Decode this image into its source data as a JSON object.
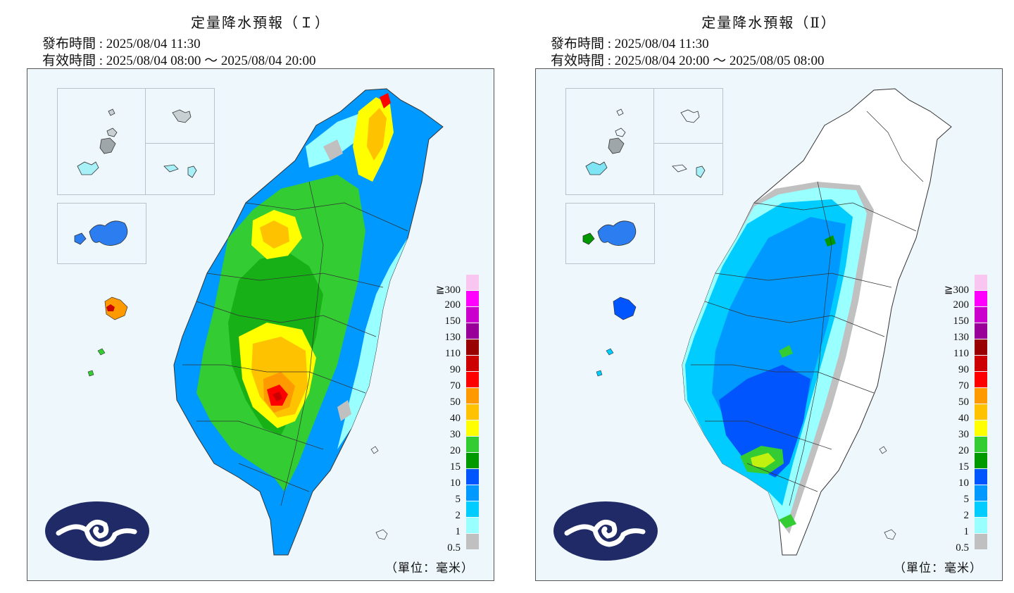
{
  "panels": [
    {
      "title": "定量降水預報（Ｉ）",
      "issue_label": "發布時間 : 2025/08/04 11:30",
      "valid_label": "有效時間 : 2025/08/04 08:00 ～ 2025/08/04 20:00"
    },
    {
      "title": "定量降水預報（Ⅱ）",
      "issue_label": "發布時間 : 2025/08/04 11:30",
      "valid_label": "有效時間 : 2025/08/04 20:00 ～ 2025/08/05 08:00"
    }
  ],
  "legend": {
    "unit": "（單位：毫米）",
    "levels": [
      {
        "label": "≧300",
        "color": "#f8c6f0"
      },
      {
        "label": "200",
        "color": "#ff00ff"
      },
      {
        "label": "150",
        "color": "#cc00cc"
      },
      {
        "label": "130",
        "color": "#99009a"
      },
      {
        "label": "110",
        "color": "#990000"
      },
      {
        "label": "90",
        "color": "#cc0000"
      },
      {
        "label": "70",
        "color": "#ff0000"
      },
      {
        "label": "50",
        "color": "#ff9900"
      },
      {
        "label": "40",
        "color": "#ffc200"
      },
      {
        "label": "30",
        "color": "#ffff00"
      },
      {
        "label": "20",
        "color": "#33cc33"
      },
      {
        "label": "15",
        "color": "#009900"
      },
      {
        "label": "10",
        "color": "#0055ff"
      },
      {
        "label": "5",
        "color": "#0099ff"
      },
      {
        "label": "2",
        "color": "#00ccff"
      },
      {
        "label": "1",
        "color": "#99ffff"
      },
      {
        "label": "0.5",
        "color": "#c0c0c0"
      }
    ]
  },
  "logo": {
    "icon": "cwa-cloud-logo-icon",
    "color": "#1f2a66"
  },
  "map_background": "#eef7fc"
}
